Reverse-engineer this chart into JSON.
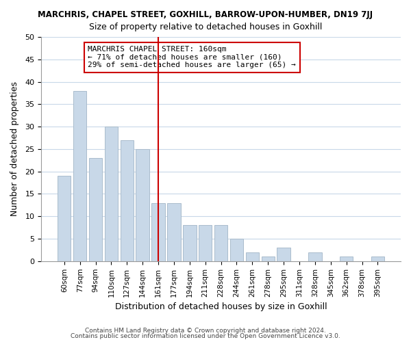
{
  "title": "MARCHRIS, CHAPEL STREET, GOXHILL, BARROW-UPON-HUMBER, DN19 7JJ",
  "subtitle": "Size of property relative to detached houses in Goxhill",
  "xlabel": "Distribution of detached houses by size in Goxhill",
  "ylabel": "Number of detached properties",
  "bar_labels": [
    "60sqm",
    "77sqm",
    "94sqm",
    "110sqm",
    "127sqm",
    "144sqm",
    "161sqm",
    "177sqm",
    "194sqm",
    "211sqm",
    "228sqm",
    "244sqm",
    "261sqm",
    "278sqm",
    "295sqm",
    "311sqm",
    "328sqm",
    "345sqm",
    "362sqm",
    "378sqm",
    "395sqm"
  ],
  "bar_values": [
    19,
    38,
    23,
    30,
    27,
    25,
    13,
    13,
    8,
    8,
    8,
    5,
    2,
    1,
    3,
    0,
    2,
    0,
    1,
    0,
    1
  ],
  "bar_color": "#c8d8e8",
  "bar_edge_color": "#aabccc",
  "vline_x": 6,
  "vline_color": "#cc0000",
  "ylim": [
    0,
    50
  ],
  "annotation_title": "MARCHRIS CHAPEL STREET: 160sqm",
  "annotation_line1": "← 71% of detached houses are smaller (160)",
  "annotation_line2": "29% of semi-detached houses are larger (65) →",
  "annotation_box_color": "#ffffff",
  "annotation_box_edge": "#cc0000",
  "footer1": "Contains HM Land Registry data © Crown copyright and database right 2024.",
  "footer2": "Contains public sector information licensed under the Open Government Licence v3.0.",
  "background_color": "#ffffff",
  "grid_color": "#c8d8e8"
}
